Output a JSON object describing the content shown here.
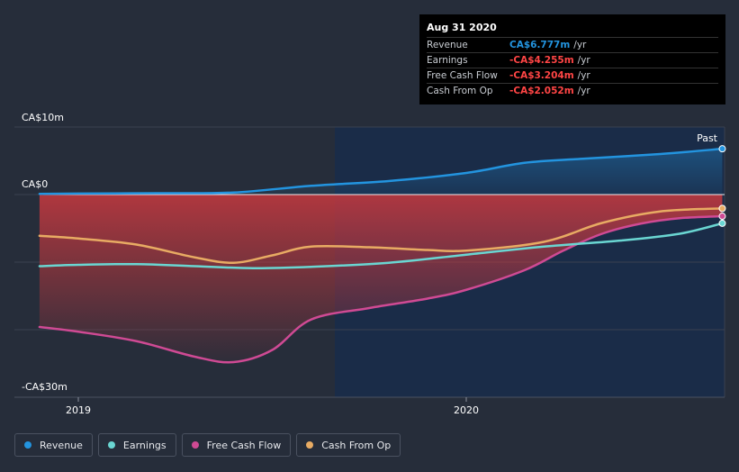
{
  "chart_data": {
    "type": "line",
    "x_ticks": [
      "2019",
      "2020"
    ],
    "y_ticks": [
      "CA$10m",
      "CA$0",
      "-CA$30m"
    ],
    "ylim": [
      -30,
      10
    ],
    "past_label": "Past",
    "series": [
      {
        "name": "Revenue",
        "color": "#2394df",
        "x": [
          2018.9,
          2019.0,
          2019.2,
          2019.4,
          2019.6,
          2019.8,
          2020.0,
          2020.15,
          2020.3,
          2020.5,
          2020.66
        ],
        "values": [
          0.1,
          0.15,
          0.2,
          0.3,
          1.3,
          2.0,
          3.2,
          4.7,
          5.3,
          6.0,
          6.777
        ]
      },
      {
        "name": "Earnings",
        "color": "#6ad6d2",
        "x": [
          2018.9,
          2019.0,
          2019.15,
          2019.3,
          2019.45,
          2019.6,
          2019.8,
          2020.0,
          2020.2,
          2020.4,
          2020.55,
          2020.66
        ],
        "values": [
          -10.6,
          -10.4,
          -10.3,
          -10.6,
          -10.9,
          -10.7,
          -10.1,
          -8.9,
          -7.7,
          -6.8,
          -5.8,
          -4.255
        ]
      },
      {
        "name": "Free Cash Flow",
        "color": "#cf4a94",
        "x": [
          2018.9,
          2019.0,
          2019.15,
          2019.3,
          2019.4,
          2019.5,
          2019.6,
          2019.75,
          2019.9,
          2020.0,
          2020.15,
          2020.25,
          2020.35,
          2020.45,
          2020.55,
          2020.66
        ],
        "values": [
          -19.6,
          -20.3,
          -21.7,
          -24.0,
          -24.8,
          -23.0,
          -18.5,
          -16.8,
          -15.4,
          -14.1,
          -11.2,
          -8.3,
          -5.8,
          -4.3,
          -3.5,
          -3.204
        ]
      },
      {
        "name": "Cash From Op",
        "color": "#e8ab63",
        "x": [
          2018.9,
          2019.0,
          2019.15,
          2019.3,
          2019.4,
          2019.5,
          2019.6,
          2019.75,
          2019.9,
          2020.0,
          2020.2,
          2020.35,
          2020.5,
          2020.66
        ],
        "values": [
          -6.1,
          -6.5,
          -7.4,
          -9.3,
          -10.1,
          -9.0,
          -7.7,
          -7.8,
          -8.2,
          -8.3,
          -7.0,
          -4.2,
          -2.5,
          -2.052
        ]
      }
    ]
  },
  "tooltip": {
    "date": "Aug 31 2020",
    "rows": [
      {
        "name": "Revenue",
        "value": "CA$6.777m",
        "unit": "/yr",
        "color": "#2394df"
      },
      {
        "name": "Earnings",
        "value": "-CA$4.255m",
        "unit": "/yr",
        "color": "#ff4545"
      },
      {
        "name": "Free Cash Flow",
        "value": "-CA$3.204m",
        "unit": "/yr",
        "color": "#ff4545"
      },
      {
        "name": "Cash From Op",
        "value": "-CA$2.052m",
        "unit": "/yr",
        "color": "#ff4545"
      }
    ]
  },
  "legend": [
    {
      "label": "Revenue",
      "color": "#2394df"
    },
    {
      "label": "Earnings",
      "color": "#6ad6d2"
    },
    {
      "label": "Free Cash Flow",
      "color": "#cf4a94"
    },
    {
      "label": "Cash From Op",
      "color": "#e8ab63"
    }
  ]
}
